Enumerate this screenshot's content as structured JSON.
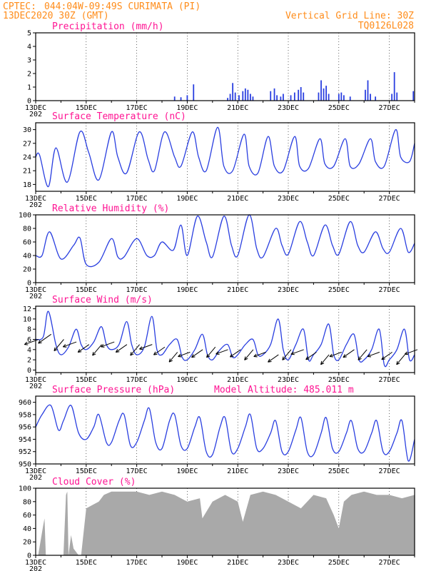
{
  "header": {
    "source": "CPTEC:",
    "location": "044:04W-09:49S   CURIMATA (PI)",
    "run": "13DEC2020 30Z (GMT)",
    "grid_note": "Vertical Grid Line: 30Z",
    "model_code": "TQ0126L028"
  },
  "colors": {
    "line": "#2a3fe0",
    "bar": "#2a3fe0",
    "cloud": "#a9a9a9",
    "title": "#ff1493",
    "header": "#ff8c1a",
    "arrow": "#000000"
  },
  "x_labels": [
    "13DEC",
    "15DEC",
    "17DEC",
    "19DEC",
    "21DEC",
    "23DEC",
    "25DEC",
    "27DEC"
  ],
  "x_cut_label": "202",
  "x_range_days": [
    0,
    15
  ],
  "panels": [
    {
      "id": "precip",
      "title": "Precipitation (mm/h)",
      "yticks": [
        "0",
        "1",
        "2",
        "3",
        "4",
        "5"
      ]
    },
    {
      "id": "temp",
      "title": "Surface Temperature (nC)",
      "yticks": [
        "18",
        "21",
        "24",
        "27",
        "30"
      ]
    },
    {
      "id": "rh",
      "title": "Relative Humidity (%)",
      "yticks": [
        "0",
        "20",
        "40",
        "60",
        "80",
        "100"
      ]
    },
    {
      "id": "wind",
      "title": "Surface Wind (m/s)",
      "yticks": [
        "0",
        "2",
        "4",
        "6",
        "8",
        "10",
        "12"
      ]
    },
    {
      "id": "pres",
      "title": "Surface Pressure (hPa)",
      "yticks": [
        "950",
        "952",
        "954",
        "956",
        "958",
        "960"
      ],
      "extra": "Model Altitude: 485.011 m"
    },
    {
      "id": "cloud",
      "title": "Cloud Cover (%)",
      "yticks": [
        "0",
        "20",
        "40",
        "60",
        "80",
        "100"
      ]
    }
  ],
  "chart_data": [
    {
      "type": "bar",
      "title": "Precipitation (mm/h)",
      "ylim": [
        0,
        5
      ],
      "x_unit": "days since 13DEC",
      "points": [
        [
          5.5,
          0.3
        ],
        [
          5.75,
          0.25
        ],
        [
          6.0,
          0.4
        ],
        [
          6.25,
          1.2
        ],
        [
          7.6,
          0.2
        ],
        [
          7.7,
          0.5
        ],
        [
          7.8,
          1.3
        ],
        [
          7.9,
          0.6
        ],
        [
          8.05,
          0.4
        ],
        [
          8.2,
          0.7
        ],
        [
          8.3,
          0.9
        ],
        [
          8.4,
          0.8
        ],
        [
          8.5,
          0.5
        ],
        [
          8.6,
          0.3
        ],
        [
          9.3,
          0.7
        ],
        [
          9.45,
          0.9
        ],
        [
          9.55,
          0.4
        ],
        [
          9.7,
          0.3
        ],
        [
          9.8,
          0.5
        ],
        [
          10.1,
          0.4
        ],
        [
          10.25,
          0.6
        ],
        [
          10.4,
          0.8
        ],
        [
          10.5,
          1.0
        ],
        [
          10.6,
          0.6
        ],
        [
          11.2,
          0.6
        ],
        [
          11.3,
          1.5
        ],
        [
          11.4,
          0.9
        ],
        [
          11.5,
          1.1
        ],
        [
          11.6,
          0.5
        ],
        [
          12.0,
          0.5
        ],
        [
          12.1,
          0.6
        ],
        [
          12.2,
          0.4
        ],
        [
          12.45,
          0.3
        ],
        [
          13.05,
          0.8
        ],
        [
          13.15,
          1.5
        ],
        [
          13.25,
          0.5
        ],
        [
          13.45,
          0.3
        ],
        [
          14.1,
          0.5
        ],
        [
          14.2,
          2.1
        ],
        [
          14.3,
          0.6
        ],
        [
          14.95,
          0.7
        ]
      ]
    },
    {
      "type": "line",
      "title": "Surface Temperature (nC)",
      "ylim": [
        16.5,
        31.5
      ],
      "x_unit": "days since 13DEC",
      "x": [
        0,
        0.15,
        0.5,
        0.8,
        1.25,
        1.75,
        2.1,
        2.5,
        3.0,
        3.25,
        3.6,
        4.1,
        4.45,
        4.7,
        5.1,
        5.5,
        5.75,
        6.2,
        6.45,
        6.75,
        7.2,
        7.45,
        7.8,
        8.25,
        8.45,
        8.8,
        9.2,
        9.45,
        9.8,
        10.25,
        10.45,
        10.8,
        11.25,
        11.45,
        11.8,
        12.25,
        12.45,
        12.8,
        13.25,
        13.45,
        13.8,
        14.25,
        14.45,
        14.8,
        15.0
      ],
      "y": [
        24,
        24.5,
        17.5,
        26,
        18.5,
        29.5,
        25,
        19,
        29.5,
        24,
        20.5,
        29.5,
        23.5,
        21,
        29.5,
        24,
        22,
        29.5,
        24,
        21,
        30.5,
        22,
        21,
        29,
        22,
        20.5,
        28.5,
        22,
        21,
        28.5,
        22,
        21.5,
        28,
        22.5,
        22,
        28,
        22,
        22.5,
        28,
        23,
        22,
        30,
        24,
        23,
        27
      ]
    },
    {
      "type": "line",
      "title": "Relative Humidity (%)",
      "ylim": [
        0,
        100
      ],
      "x_unit": "days since 13DEC",
      "x": [
        0,
        0.25,
        0.55,
        1.0,
        1.5,
        1.75,
        2.0,
        2.5,
        3.0,
        3.25,
        3.5,
        4.0,
        4.4,
        4.7,
        5.0,
        5.45,
        5.75,
        6.0,
        6.4,
        6.75,
        7.0,
        7.45,
        7.75,
        8.0,
        8.45,
        8.75,
        9.0,
        9.5,
        9.75,
        10.0,
        10.45,
        10.75,
        11.0,
        11.45,
        11.75,
        12.0,
        12.45,
        12.75,
        13.0,
        13.45,
        13.75,
        14.0,
        14.45,
        14.75,
        15.0
      ],
      "y": [
        40,
        40,
        75,
        35,
        55,
        66,
        27,
        30,
        65,
        38,
        38,
        65,
        40,
        40,
        60,
        48,
        85,
        40,
        98,
        60,
        38,
        98,
        55,
        40,
        100,
        50,
        38,
        80,
        55,
        42,
        90,
        60,
        40,
        85,
        55,
        42,
        90,
        55,
        45,
        75,
        50,
        45,
        80,
        45,
        58
      ]
    },
    {
      "type": "line",
      "title": "Surface Wind (m/s)",
      "ylim": [
        -0.5,
        12.5
      ],
      "x_unit": "days since 13DEC",
      "x": [
        0,
        0.3,
        0.5,
        0.8,
        1.0,
        1.3,
        1.6,
        1.8,
        2.0,
        2.3,
        2.6,
        2.8,
        3.0,
        3.3,
        3.6,
        3.8,
        4.0,
        4.3,
        4.6,
        4.8,
        5.0,
        5.3,
        5.6,
        5.8,
        6.0,
        6.3,
        6.6,
        6.8,
        7.0,
        7.3,
        7.6,
        7.8,
        8.0,
        8.3,
        8.6,
        8.8,
        9.0,
        9.3,
        9.6,
        9.8,
        10.0,
        10.3,
        10.6,
        10.8,
        11.0,
        11.3,
        11.6,
        11.8,
        12.0,
        12.3,
        12.6,
        12.8,
        13.0,
        13.3,
        13.6,
        13.8,
        14.0,
        14.3,
        14.6,
        14.8,
        15.0
      ],
      "y": [
        6,
        6.5,
        11.5,
        5,
        3,
        4.5,
        8,
        5,
        4,
        5.5,
        8.5,
        5,
        4,
        5,
        9.5,
        5,
        3,
        4.5,
        10.5,
        4,
        3,
        5,
        6,
        2.5,
        2,
        4,
        7,
        3,
        2,
        4,
        5,
        2.5,
        3,
        5,
        6,
        3,
        3,
        5,
        10,
        4,
        2,
        5,
        8,
        2,
        3,
        5,
        9,
        3,
        2,
        5,
        7,
        2,
        2,
        4,
        8,
        1,
        2,
        4,
        8,
        2,
        3
      ]
    },
    {
      "type": "line",
      "title": "Surface Pressure (hPa)",
      "ylim": [
        950,
        961
      ],
      "x_unit": "days since 13DEC",
      "x": [
        0,
        0.25,
        0.6,
        0.9,
        1.1,
        1.4,
        1.7,
        2.0,
        2.3,
        2.5,
        2.8,
        3.0,
        3.3,
        3.5,
        3.75,
        4.0,
        4.3,
        4.5,
        4.75,
        5.0,
        5.3,
        5.5,
        5.75,
        6.0,
        6.3,
        6.5,
        6.75,
        7.0,
        7.3,
        7.5,
        7.75,
        8.0,
        8.3,
        8.5,
        8.75,
        9.0,
        9.3,
        9.5,
        9.75,
        10.0,
        10.3,
        10.5,
        10.75,
        11.0,
        11.3,
        11.5,
        11.75,
        12.0,
        12.3,
        12.5,
        12.75,
        13.0,
        13.3,
        13.5,
        13.75,
        14.0,
        14.3,
        14.5,
        14.75,
        15.0
      ],
      "y": [
        956,
        958,
        959.5,
        955.5,
        957,
        959.5,
        955,
        954,
        956,
        958,
        953.5,
        953.5,
        957,
        958,
        953,
        953.5,
        957,
        959,
        953.5,
        952.5,
        957,
        958,
        953,
        952.5,
        956,
        957.5,
        952,
        951.5,
        956,
        957.5,
        952,
        952.5,
        956,
        958,
        952.5,
        952.5,
        955,
        957,
        952,
        952,
        955.5,
        957.5,
        952,
        951.5,
        955,
        957.5,
        952.5,
        952,
        955,
        957,
        952.5,
        952,
        955,
        957,
        952,
        952,
        955,
        957,
        950.5,
        954
      ]
    },
    {
      "type": "area",
      "title": "Cloud Cover (%)",
      "ylim": [
        0,
        100
      ],
      "x_unit": "days since 13DEC",
      "x": [
        0,
        0.1,
        0.3,
        0.35,
        0.4,
        0.8,
        1.1,
        1.2,
        1.25,
        1.3,
        1.4,
        1.5,
        1.7,
        1.8,
        2.0,
        2.5,
        2.7,
        3.0,
        3.5,
        4.0,
        4.5,
        5.0,
        5.5,
        6.0,
        6.5,
        6.6,
        7.0,
        7.5,
        8.0,
        8.2,
        8.5,
        9.0,
        9.5,
        10.0,
        10.5,
        11.0,
        11.5,
        11.8,
        12.0,
        12.2,
        12.5,
        13.0,
        13.5,
        14.0,
        14.5,
        15.0
      ],
      "y": [
        0,
        0,
        45,
        55,
        0,
        0,
        0,
        90,
        95,
        0,
        30,
        10,
        0,
        0,
        70,
        80,
        90,
        95,
        95,
        95,
        90,
        95,
        90,
        80,
        85,
        55,
        80,
        90,
        80,
        50,
        90,
        95,
        90,
        80,
        70,
        90,
        85,
        60,
        40,
        80,
        90,
        95,
        90,
        90,
        85,
        90
      ]
    },
    {
      "type": "scatter",
      "title": "Surface Wind vectors",
      "x_unit": "days since 13DEC",
      "x": [
        0,
        0.5,
        1.0,
        1.5,
        2.0,
        2.5,
        3.0,
        3.5,
        4.0,
        4.5,
        5.0,
        5.5,
        6.0,
        6.5,
        7.0,
        7.5,
        8.0,
        8.5,
        9.0,
        9.5,
        10.0,
        10.5,
        11.0,
        11.5,
        12.0,
        12.5,
        13.0,
        13.5,
        14.0,
        14.5,
        15.0
      ],
      "y": [
        6,
        7,
        6,
        5.5,
        5,
        5,
        5.5,
        5,
        5,
        5,
        4.5,
        3.5,
        3.5,
        4,
        4.5,
        4,
        4,
        4,
        3.5,
        3,
        4,
        4,
        3.5,
        3,
        3.5,
        4,
        4,
        3.5,
        3.5,
        3,
        4
      ],
      "speed": [
        7,
        8,
        7,
        6,
        5,
        6,
        6,
        5,
        6,
        5,
        5,
        4,
        4,
        5,
        5,
        4,
        4,
        5,
        4,
        4,
        5,
        5,
        4,
        4,
        4,
        5,
        5,
        4,
        4,
        4,
        5
      ]
    }
  ]
}
